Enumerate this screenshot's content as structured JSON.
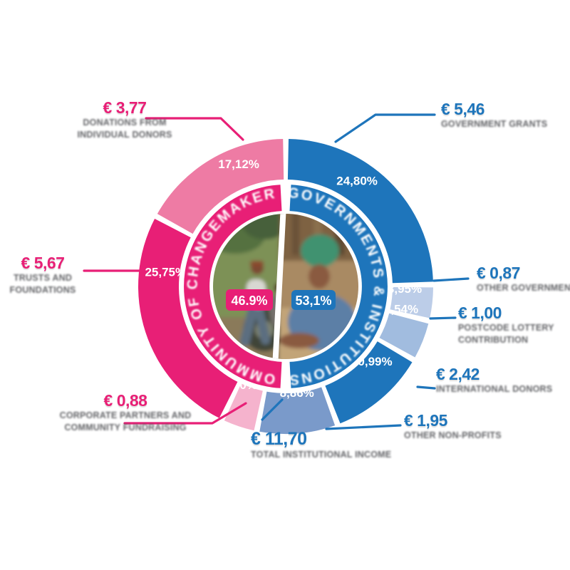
{
  "chart_data": {
    "type": "pie",
    "variant": "nested-donut",
    "unit": "€ million",
    "legend_position": "around",
    "colors": {
      "pink": "#e81f76",
      "rose": "#ee7ba4",
      "light_pink": "#f5b3cd",
      "blue": "#1e75bb",
      "steel_blue": "#7a9aca",
      "light_blue": "#a1bcdf",
      "lighter_blue": "#bccde8",
      "caption_gray": "#55565a"
    },
    "inner": {
      "left": {
        "share_label": "46.9%",
        "arc_label": "COMMUNITY OF CHANGEMAKERS",
        "color": "#e81f76",
        "photo": "people-working-in-field-photo"
      },
      "right": {
        "share_label": "53,1%",
        "arc_label": "GOVERNMENTS & INSTITUTIONS",
        "color": "#1e75bb",
        "photo": "woman-green-headscarf-photo",
        "total_amount": "€ 11,70",
        "total_caption": "TOTAL INSTITUTIONAL INCOME"
      }
    },
    "segments": [
      {
        "value": 24.8,
        "pct_label": "24,80%",
        "amount": "€ 5,46",
        "caption_lines": [
          "GOVERNMENT GRANTS"
        ],
        "color": "#1e75bb",
        "side": "blue"
      },
      {
        "value": 3.95,
        "pct_label": "3,95%",
        "amount": "€ 0,87",
        "caption_lines": [
          "OTHER GOVERNMENTS"
        ],
        "color": "#bccde8",
        "side": "blue"
      },
      {
        "value": 4.54,
        "pct_label": "4,54%",
        "amount": "€ 1,00",
        "caption_lines": [
          "POSTCODE LOTTERY",
          "CONTRIBUTION"
        ],
        "color": "#a1bcdf",
        "side": "blue"
      },
      {
        "value": 10.99,
        "pct_label": "10,99%",
        "amount": "€ 2,42",
        "caption_lines": [
          "INTERNATIONAL DONORS"
        ],
        "color": "#1e75bb",
        "side": "blue"
      },
      {
        "value": 8.86,
        "pct_label": "8,86%",
        "amount": "€ 1,95",
        "caption_lines": [
          "OTHER NON-PROFITS"
        ],
        "color": "#7a9aca",
        "side": "blue"
      },
      {
        "value": 4.0,
        "pct_label": "4,00%",
        "amount": "€ 0,88",
        "caption_lines": [
          "CORPORATE PARTNERS AND",
          "COMMUNITY FUNDRAISING"
        ],
        "color": "#f5b3cd",
        "side": "pink"
      },
      {
        "value": 25.75,
        "pct_label": "25,75%",
        "amount": "€ 5,67",
        "caption_lines": [
          "TRUSTS AND",
          "FOUNDATIONS"
        ],
        "color": "#e81f76",
        "side": "pink"
      },
      {
        "value": 17.12,
        "pct_label": "17,12%",
        "amount": "€ 3,77",
        "caption_lines": [
          "DONATIONS FROM",
          "INDIVIDUAL DONORS"
        ],
        "color": "#ee7ba4",
        "side": "pink"
      }
    ]
  }
}
